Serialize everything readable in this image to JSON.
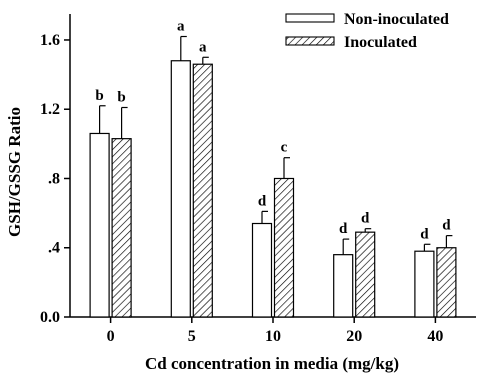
{
  "chart_data": {
    "type": "bar",
    "title": "",
    "xlabel": "Cd concentration in media (mg/kg)",
    "ylabel": "GSH/GSSG Ratio",
    "categories": [
      "0",
      "5",
      "10",
      "20",
      "40"
    ],
    "ylim": [
      0,
      1.75
    ],
    "yticks": [
      {
        "value": 0.0,
        "label": "0.0"
      },
      {
        "value": 0.4,
        "label": ".4"
      },
      {
        "value": 0.8,
        "label": ".8"
      },
      {
        "value": 1.2,
        "label": "1.2"
      },
      {
        "value": 1.6,
        "label": "1.6"
      }
    ],
    "grid": false,
    "legend_position": "top-right",
    "series": [
      {
        "name": "Non-inoculated",
        "pattern": "open",
        "values": [
          1.06,
          1.48,
          0.54,
          0.36,
          0.38
        ],
        "errors": [
          0.16,
          0.14,
          0.07,
          0.09,
          0.04
        ],
        "significance": [
          "b",
          "a",
          "d",
          "d",
          "d"
        ]
      },
      {
        "name": "Inoculated",
        "pattern": "hatched",
        "values": [
          1.03,
          1.46,
          0.8,
          0.49,
          0.4
        ],
        "errors": [
          0.18,
          0.04,
          0.12,
          0.02,
          0.07
        ],
        "significance": [
          "b",
          "a",
          "c",
          "d",
          "d"
        ]
      }
    ]
  },
  "colors": {
    "bar_fill": "#ffffff",
    "bar_stroke": "#000000",
    "hatch": "#000000"
  }
}
